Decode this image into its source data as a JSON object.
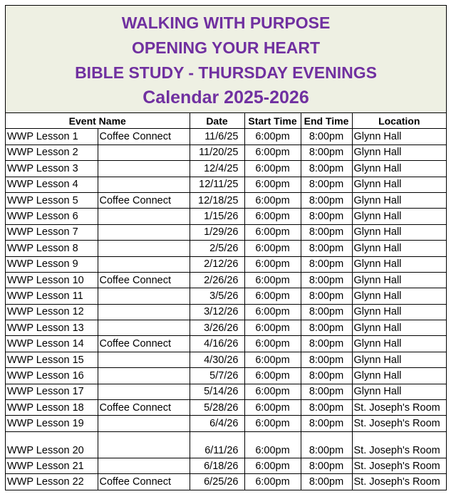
{
  "header": {
    "lines": [
      "WALKING WITH PURPOSE",
      "OPENING YOUR HEART",
      "BIBLE STUDY - THURSDAY EVENINGS",
      "Calendar 2025-2026"
    ]
  },
  "table": {
    "columns": [
      "Event Name",
      "Date",
      "Start Time",
      "End Time",
      "Location"
    ],
    "rows": [
      {
        "event": "WWP Lesson 1",
        "note": "Coffee Connect",
        "date": "11/6/25",
        "start": "6:00pm",
        "end": "8:00pm",
        "location": "Glynn Hall"
      },
      {
        "event": "WWP Lesson 2",
        "date": "11/20/25",
        "start": "6:00pm",
        "end": "8:00pm",
        "location": "Glynn Hall"
      },
      {
        "event": "WWP Lesson 3",
        "date": "12/4/25",
        "start": "6:00pm",
        "end": "8:00pm",
        "location": "Glynn Hall"
      },
      {
        "event": "WWP Lesson 4",
        "date": "12/11/25",
        "start": "6:00pm",
        "end": "8:00pm",
        "location": "Glynn Hall"
      },
      {
        "event": "WWP Lesson 5",
        "note": "Coffee Connect",
        "date": "12/18/25",
        "start": "6:00pm",
        "end": "8:00pm",
        "location": "Glynn Hall"
      },
      {
        "event": "WWP Lesson 6",
        "date": "1/15/26",
        "start": "6:00pm",
        "end": "8:00pm",
        "location": "Glynn Hall"
      },
      {
        "event": "WWP Lesson 7",
        "date": "1/29/26",
        "start": "6:00pm",
        "end": "8:00pm",
        "location": "Glynn Hall"
      },
      {
        "event": "WWP Lesson 8",
        "date": "2/5/26",
        "start": "6:00pm",
        "end": "8:00pm",
        "location": "Glynn Hall"
      },
      {
        "event": "WWP Lesson 9",
        "date": "2/12/26",
        "start": "6:00pm",
        "end": "8:00pm",
        "location": "Glynn Hall"
      },
      {
        "event": "WWP Lesson 10",
        "note": "Coffee Connect",
        "date": "2/26/26",
        "start": "6:00pm",
        "end": "8:00pm",
        "location": "Glynn Hall"
      },
      {
        "event": "WWP Lesson 11",
        "date": "3/5/26",
        "start": "6:00pm",
        "end": "8:00pm",
        "location": "Glynn Hall"
      },
      {
        "event": "WWP Lesson 12",
        "date": "3/12/26",
        "start": "6:00pm",
        "end": "8:00pm",
        "location": "Glynn Hall"
      },
      {
        "event": "WWP Lesson 13",
        "date": "3/26/26",
        "start": "6:00pm",
        "end": "8:00pm",
        "location": "Glynn Hall"
      },
      {
        "event": "WWP Lesson 14",
        "note": "Coffee Connect",
        "date": "4/16/26",
        "start": "6:00pm",
        "end": "8:00pm",
        "location": "Glynn Hall"
      },
      {
        "event": "WWP Lesson 15",
        "date": "4/30/26",
        "start": "6:00pm",
        "end": "8:00pm",
        "location": "Glynn Hall"
      },
      {
        "event": "WWP Lesson 16",
        "date": "5/7/26",
        "start": "6:00pm",
        "end": "8:00pm",
        "location": "Glynn Hall"
      },
      {
        "event": "WWP Lesson 17",
        "date": "5/14/26",
        "start": "6:00pm",
        "end": "8:00pm",
        "location": "Glynn Hall"
      },
      {
        "event": "WWP Lesson 18",
        "note": "Coffee Connect",
        "date": "5/28/26",
        "start": "6:00pm",
        "end": "8:00pm",
        "location": "St. Joseph's Room"
      },
      {
        "event": "WWP Lesson 19",
        "date": "6/4/26",
        "start": "6:00pm",
        "end": "8:00pm",
        "location": "St. Joseph's Room"
      },
      {
        "event": "WWP Lesson 20",
        "date": "6/11/26",
        "start": "6:00pm",
        "end": "8:00pm",
        "location": "St. Joseph's Room"
      },
      {
        "event": "WWP Lesson 21",
        "date": "6/18/26",
        "start": "6:00pm",
        "end": "8:00pm",
        "location": "St. Joseph's Room"
      },
      {
        "event": "WWP Lesson 22",
        "note": "Coffee Connect",
        "date": "6/25/26",
        "start": "6:00pm",
        "end": "8:00pm",
        "location": "St. Joseph's Room"
      }
    ]
  }
}
